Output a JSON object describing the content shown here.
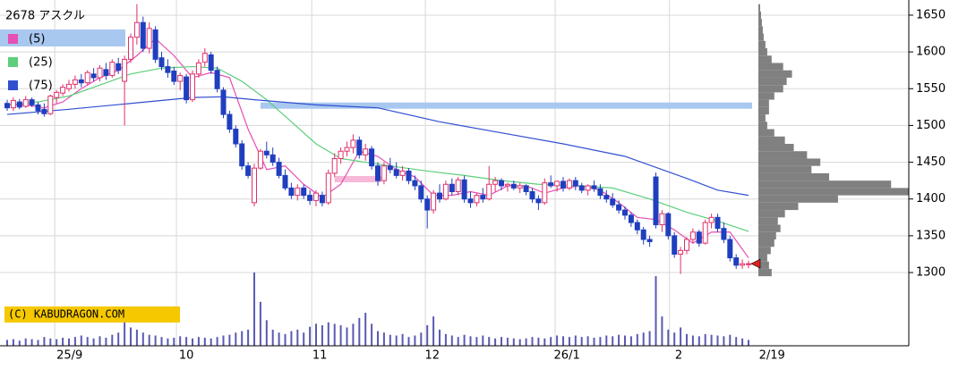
{
  "chart_data": {
    "type": "candlestick",
    "title": "2678 アスクル",
    "credit": "(C) KABUDRAGON.COM",
    "up_color": "#e0306a",
    "down_color": "#1f3fbf",
    "ylim": [
      1280,
      1670
    ],
    "yticks": [
      1300,
      1350,
      1400,
      1450,
      1500,
      1550,
      1600,
      1650
    ],
    "grid": true,
    "xgrid": [
      7.7,
      27.4,
      49.3,
      67.7,
      88.7,
      107.2
    ],
    "xticks": [
      {
        "value": 10.1,
        "label": "25/9"
      },
      {
        "value": 29,
        "label": "10"
      },
      {
        "value": 50.6,
        "label": "11"
      },
      {
        "value": 68.8,
        "label": "12"
      },
      {
        "value": 90.6,
        "label": "26/1"
      },
      {
        "value": 108.7,
        "label": "2"
      },
      {
        "value": 123.8,
        "label": "2/19"
      }
    ],
    "candles": [
      [
        1530,
        1535,
        1520,
        1524
      ],
      [
        1524,
        1538,
        1520,
        1534
      ],
      [
        1532,
        1536,
        1522,
        1525
      ],
      [
        1526,
        1540,
        1524,
        1535
      ],
      [
        1535,
        1538,
        1525,
        1528
      ],
      [
        1528,
        1532,
        1515,
        1520
      ],
      [
        1522,
        1530,
        1512,
        1516
      ],
      [
        1516,
        1542,
        1514,
        1540
      ],
      [
        1538,
        1548,
        1530,
        1545
      ],
      [
        1544,
        1556,
        1540,
        1552
      ],
      [
        1550,
        1562,
        1546,
        1556
      ],
      [
        1556,
        1568,
        1550,
        1562
      ],
      [
        1562,
        1570,
        1552,
        1558
      ],
      [
        1558,
        1575,
        1555,
        1572
      ],
      [
        1570,
        1578,
        1560,
        1565
      ],
      [
        1565,
        1582,
        1560,
        1578
      ],
      [
        1576,
        1585,
        1562,
        1568
      ],
      [
        1568,
        1590,
        1565,
        1586
      ],
      [
        1584,
        1592,
        1570,
        1575
      ],
      [
        1560,
        1595,
        1500,
        1590
      ],
      [
        1590,
        1625,
        1585,
        1620
      ],
      [
        1620,
        1665,
        1610,
        1640
      ],
      [
        1640,
        1648,
        1600,
        1605
      ],
      [
        1605,
        1640,
        1598,
        1632
      ],
      [
        1630,
        1635,
        1585,
        1590
      ],
      [
        1592,
        1600,
        1575,
        1580
      ],
      [
        1580,
        1590,
        1565,
        1572
      ],
      [
        1574,
        1580,
        1555,
        1560
      ],
      [
        1560,
        1572,
        1548,
        1568
      ],
      [
        1566,
        1570,
        1530,
        1535
      ],
      [
        1535,
        1575,
        1532,
        1570
      ],
      [
        1570,
        1590,
        1565,
        1585
      ],
      [
        1586,
        1605,
        1580,
        1598
      ],
      [
        1596,
        1600,
        1570,
        1575
      ],
      [
        1575,
        1580,
        1545,
        1550
      ],
      [
        1548,
        1552,
        1510,
        1515
      ],
      [
        1515,
        1520,
        1490,
        1495
      ],
      [
        1495,
        1500,
        1470,
        1475
      ],
      [
        1475,
        1480,
        1440,
        1445
      ],
      [
        1445,
        1450,
        1428,
        1432
      ],
      [
        1395,
        1448,
        1390,
        1442
      ],
      [
        1442,
        1468,
        1440,
        1465
      ],
      [
        1465,
        1478,
        1455,
        1460
      ],
      [
        1460,
        1470,
        1445,
        1450
      ],
      [
        1450,
        1456,
        1428,
        1432
      ],
      [
        1432,
        1440,
        1412,
        1415
      ],
      [
        1415,
        1422,
        1400,
        1405
      ],
      [
        1405,
        1420,
        1398,
        1415
      ],
      [
        1415,
        1420,
        1400,
        1405
      ],
      [
        1405,
        1412,
        1392,
        1398
      ],
      [
        1398,
        1412,
        1390,
        1408
      ],
      [
        1405,
        1410,
        1390,
        1395
      ],
      [
        1395,
        1440,
        1392,
        1435
      ],
      [
        1435,
        1462,
        1430,
        1455
      ],
      [
        1455,
        1470,
        1448,
        1465
      ],
      [
        1465,
        1478,
        1458,
        1470
      ],
      [
        1470,
        1488,
        1462,
        1480
      ],
      [
        1480,
        1485,
        1455,
        1460
      ],
      [
        1460,
        1475,
        1452,
        1468
      ],
      [
        1468,
        1472,
        1440,
        1445
      ],
      [
        1445,
        1450,
        1418,
        1425
      ],
      [
        1425,
        1450,
        1420,
        1445
      ],
      [
        1445,
        1456,
        1435,
        1440
      ],
      [
        1440,
        1450,
        1428,
        1432
      ],
      [
        1432,
        1445,
        1425,
        1438
      ],
      [
        1438,
        1442,
        1420,
        1425
      ],
      [
        1425,
        1432,
        1412,
        1418
      ],
      [
        1418,
        1425,
        1395,
        1400
      ],
      [
        1400,
        1405,
        1360,
        1385
      ],
      [
        1385,
        1412,
        1380,
        1408
      ],
      [
        1408,
        1420,
        1395,
        1400
      ],
      [
        1400,
        1425,
        1398,
        1420
      ],
      [
        1420,
        1428,
        1405,
        1410
      ],
      [
        1410,
        1430,
        1405,
        1426
      ],
      [
        1426,
        1432,
        1395,
        1400
      ],
      [
        1400,
        1410,
        1388,
        1395
      ],
      [
        1395,
        1408,
        1390,
        1405
      ],
      [
        1405,
        1415,
        1395,
        1400
      ],
      [
        1400,
        1445,
        1398,
        1420
      ],
      [
        1420,
        1430,
        1410,
        1425
      ],
      [
        1425,
        1428,
        1412,
        1418
      ],
      [
        1418,
        1422,
        1410,
        1420
      ],
      [
        1420,
        1425,
        1412,
        1415
      ],
      [
        1415,
        1422,
        1408,
        1418
      ],
      [
        1418,
        1420,
        1405,
        1410
      ],
      [
        1410,
        1415,
        1395,
        1400
      ],
      [
        1400,
        1405,
        1385,
        1395
      ],
      [
        1395,
        1428,
        1392,
        1422
      ],
      [
        1422,
        1432,
        1415,
        1418
      ],
      [
        1418,
        1425,
        1410,
        1424
      ],
      [
        1424,
        1430,
        1410,
        1415
      ],
      [
        1415,
        1428,
        1412,
        1425
      ],
      [
        1425,
        1430,
        1412,
        1418
      ],
      [
        1418,
        1422,
        1408,
        1412
      ],
      [
        1412,
        1420,
        1405,
        1418
      ],
      [
        1418,
        1425,
        1410,
        1414
      ],
      [
        1414,
        1420,
        1400,
        1405
      ],
      [
        1405,
        1412,
        1395,
        1400
      ],
      [
        1400,
        1408,
        1388,
        1392
      ],
      [
        1392,
        1398,
        1380,
        1385
      ],
      [
        1385,
        1390,
        1372,
        1378
      ],
      [
        1378,
        1382,
        1362,
        1368
      ],
      [
        1368,
        1372,
        1352,
        1358
      ],
      [
        1358,
        1362,
        1338,
        1345
      ],
      [
        1345,
        1350,
        1335,
        1342
      ],
      [
        1430,
        1436,
        1360,
        1365
      ],
      [
        1365,
        1385,
        1355,
        1380
      ],
      [
        1380,
        1382,
        1345,
        1350
      ],
      [
        1350,
        1355,
        1320,
        1325
      ],
      [
        1325,
        1335,
        1298,
        1330
      ],
      [
        1330,
        1348,
        1325,
        1345
      ],
      [
        1345,
        1360,
        1340,
        1355
      ],
      [
        1355,
        1358,
        1335,
        1340
      ],
      [
        1340,
        1372,
        1338,
        1368
      ],
      [
        1368,
        1380,
        1360,
        1375
      ],
      [
        1375,
        1380,
        1355,
        1360
      ],
      [
        1360,
        1368,
        1340,
        1345
      ],
      [
        1345,
        1350,
        1315,
        1320
      ],
      [
        1320,
        1325,
        1305,
        1310
      ],
      [
        1310,
        1318,
        1305,
        1312
      ],
      [
        1312,
        1316,
        1306,
        1312
      ]
    ],
    "series": [
      {
        "name": "(5)",
        "color": "#e64fb4",
        "x": [
          0,
          3,
          6,
          9,
          12,
          15,
          18,
          21,
          24,
          27,
          30,
          33,
          36,
          39,
          42,
          45,
          48,
          51,
          54,
          57,
          60,
          63,
          66,
          69,
          72,
          75,
          78,
          81,
          84,
          87,
          90,
          93,
          96,
          99,
          102,
          105,
          108,
          111,
          114,
          117,
          120
        ],
        "values": [
          1528,
          1528,
          1524,
          1532,
          1550,
          1565,
          1575,
          1595,
          1618,
          1595,
          1565,
          1572,
          1565,
          1495,
          1440,
          1445,
          1420,
          1402,
          1420,
          1465,
          1458,
          1440,
          1430,
          1405,
          1405,
          1410,
          1405,
          1418,
          1418,
          1408,
          1415,
          1418,
          1412,
          1395,
          1375,
          1372,
          1358,
          1340,
          1355,
          1355,
          1320
        ]
      },
      {
        "name": "(25)",
        "color": "#5ccf7a",
        "x": [
          0,
          5,
          10,
          15,
          20,
          25,
          30,
          34,
          38,
          42,
          46,
          50,
          54,
          58,
          62,
          68,
          74,
          80,
          86,
          92,
          98,
          104,
          110,
          115,
          120
        ],
        "values": [
          1528,
          1532,
          1540,
          1555,
          1570,
          1578,
          1580,
          1578,
          1560,
          1535,
          1505,
          1475,
          1455,
          1450,
          1445,
          1438,
          1432,
          1425,
          1420,
          1418,
          1415,
          1400,
          1382,
          1370,
          1356
        ]
      },
      {
        "name": "(75)",
        "color": "#3050d0",
        "x": [
          0,
          10,
          20,
          30,
          35,
          40,
          50,
          60,
          70,
          80,
          90,
          100,
          110,
          115,
          120
        ],
        "values": [
          1515,
          1522,
          1530,
          1538,
          1539,
          1535,
          1528,
          1524,
          1505,
          1490,
          1475,
          1458,
          1428,
          1412,
          1405
        ]
      }
    ],
    "bands": [
      {
        "price": 1527,
        "start": 41,
        "end": 120,
        "color": "#a8c8f0"
      },
      {
        "price": 1427,
        "start": 53,
        "end": 60,
        "color": "#f8b8d8"
      }
    ],
    "price_marker": {
      "price": 1312,
      "color": "#e02020"
    },
    "volume": {
      "color": "#5a5ab4",
      "ylim": [
        0,
        100
      ],
      "values": [
        8,
        9,
        7,
        10,
        9,
        8,
        12,
        10,
        9,
        11,
        10,
        12,
        14,
        12,
        10,
        13,
        11,
        15,
        18,
        32,
        25,
        22,
        18,
        15,
        14,
        12,
        10,
        11,
        13,
        12,
        10,
        12,
        11,
        10,
        12,
        14,
        15,
        18,
        20,
        22,
        100,
        60,
        35,
        22,
        18,
        16,
        20,
        22,
        18,
        26,
        30,
        28,
        32,
        30,
        28,
        25,
        30,
        38,
        45,
        30,
        20,
        18,
        15,
        14,
        16,
        12,
        14,
        18,
        28,
        40,
        22,
        16,
        14,
        12,
        15,
        13,
        12,
        14,
        12,
        10,
        12,
        11,
        10,
        9,
        10,
        12,
        11,
        10,
        12,
        14,
        13,
        12,
        14,
        12,
        13,
        11,
        12,
        14,
        13,
        15,
        14,
        13,
        16,
        18,
        20,
        95,
        40,
        22,
        18,
        25,
        16,
        14,
        13,
        16,
        15,
        14,
        13,
        15,
        12,
        10,
        8
      ]
    },
    "volume_profile": {
      "color": "#808080",
      "xlim": [
        0,
        170
      ],
      "prices": [
        1300,
        1310,
        1320,
        1330,
        1340,
        1350,
        1360,
        1370,
        1380,
        1390,
        1400,
        1410,
        1420,
        1430,
        1440,
        1450,
        1460,
        1470,
        1480,
        1490,
        1500,
        1510,
        1520,
        1530,
        1540,
        1550,
        1560,
        1570,
        1580,
        1590,
        1600,
        1610,
        1620,
        1630,
        1640,
        1650,
        1660
      ],
      "values": [
        15,
        12,
        10,
        14,
        18,
        20,
        25,
        22,
        30,
        45,
        90,
        170,
        150,
        80,
        60,
        70,
        55,
        40,
        30,
        18,
        10,
        8,
        12,
        12,
        18,
        28,
        32,
        38,
        28,
        15,
        10,
        8,
        6,
        5,
        4,
        3,
        2
      ]
    }
  }
}
